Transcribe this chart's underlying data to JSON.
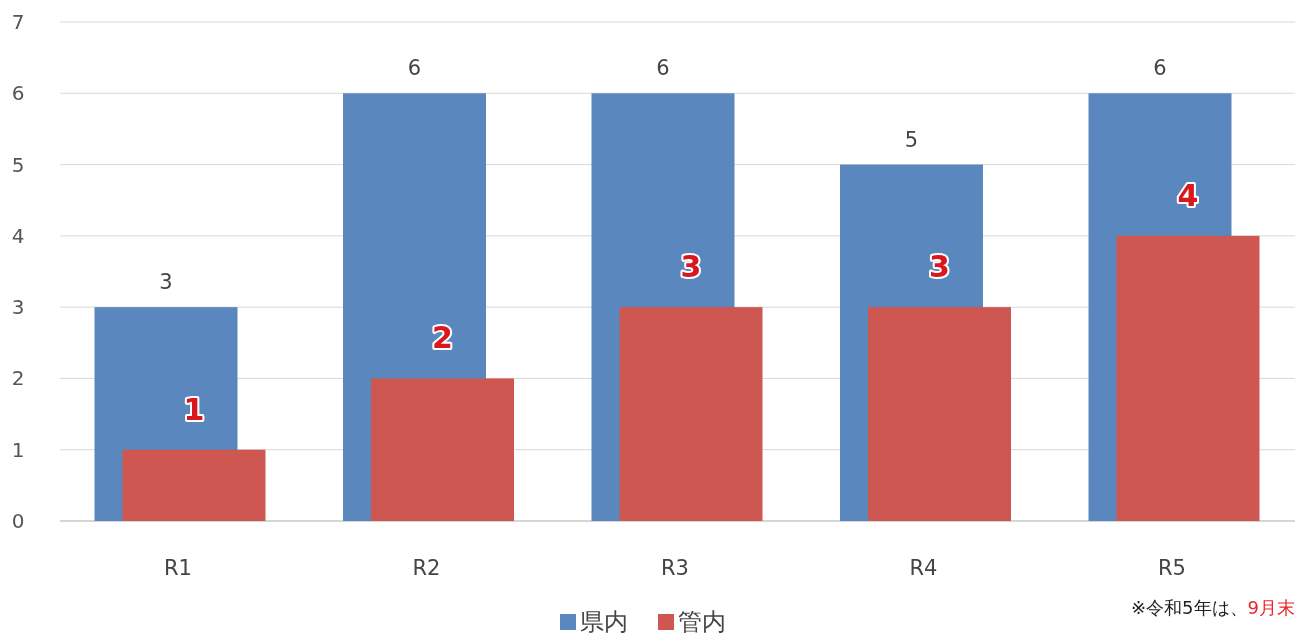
{
  "chart_data": {
    "type": "bar",
    "categories": [
      "R1",
      "R2",
      "R3",
      "R4",
      "R5"
    ],
    "series": [
      {
        "name": "県内",
        "color": "#5a87bd",
        "values": [
          3,
          6,
          6,
          5,
          6
        ]
      },
      {
        "name": "管内",
        "color": "#cf5752",
        "values": [
          1,
          2,
          3,
          3,
          4
        ]
      }
    ],
    "ylim": [
      0,
      7
    ],
    "yticks": [
      0,
      1,
      2,
      3,
      4,
      5,
      6,
      7
    ],
    "grid": "y",
    "data_labels": true,
    "legend": "bottom",
    "annotations": [
      "※令和5年は、",
      "9月末"
    ]
  }
}
